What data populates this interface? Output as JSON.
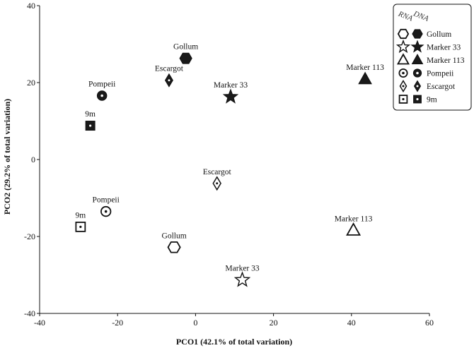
{
  "chart_data": {
    "type": "scatter",
    "xlabel": "PCO1 (42.1% of total variation)",
    "ylabel": "PCO2 (29.2% of total variation)",
    "xlim": [
      -40,
      60
    ],
    "ylim": [
      -40,
      40
    ],
    "xticks": [
      -40,
      -20,
      0,
      20,
      40,
      60
    ],
    "yticks": [
      -40,
      -20,
      0,
      20,
      40
    ],
    "grid": false,
    "legend": {
      "placement": "top-right",
      "headers": [
        "RNA",
        "DNA"
      ],
      "entries": [
        {
          "label": "Gollum",
          "marker": "hexagon"
        },
        {
          "label": "Marker 33",
          "marker": "star"
        },
        {
          "label": "Marker 113",
          "marker": "triangle"
        },
        {
          "label": "Pompeii",
          "marker": "circle-dot"
        },
        {
          "label": "Escargot",
          "marker": "diamond-dot"
        },
        {
          "label": "9m",
          "marker": "square-dot"
        }
      ]
    },
    "series": [
      {
        "name": "RNA",
        "fill": "open",
        "points": [
          {
            "label": "Gollum",
            "marker": "hexagon",
            "x": -5.5,
            "y": -22.8
          },
          {
            "label": "Marker 33",
            "marker": "star",
            "x": 12,
            "y": -31.3
          },
          {
            "label": "Marker 113",
            "marker": "triangle",
            "x": 40.5,
            "y": -18.4
          },
          {
            "label": "Pompeii",
            "marker": "circle-dot",
            "x": -23,
            "y": -13.5
          },
          {
            "label": "Escargot",
            "marker": "diamond-dot",
            "x": 5.5,
            "y": -6.2
          },
          {
            "label": "9m",
            "marker": "square-dot",
            "x": -29.5,
            "y": -17.5
          }
        ]
      },
      {
        "name": "DNA",
        "fill": "filled",
        "points": [
          {
            "label": "Gollum",
            "marker": "hexagon",
            "x": -2.5,
            "y": 26.3
          },
          {
            "label": "Marker 33",
            "marker": "star",
            "x": 9,
            "y": 16.3
          },
          {
            "label": "Marker 113",
            "marker": "triangle",
            "x": 43.5,
            "y": 20.9
          },
          {
            "label": "Pompeii",
            "marker": "circle-dot",
            "x": -24,
            "y": 16.6
          },
          {
            "label": "Escargot",
            "marker": "diamond-dot",
            "x": -6.8,
            "y": 20.6
          },
          {
            "label": "9m",
            "marker": "square-dot",
            "x": -27,
            "y": 8.8
          }
        ]
      }
    ],
    "colors": {
      "marker": "#111111",
      "dna_fill": "#1a1a1a",
      "axis": "#111111"
    }
  }
}
